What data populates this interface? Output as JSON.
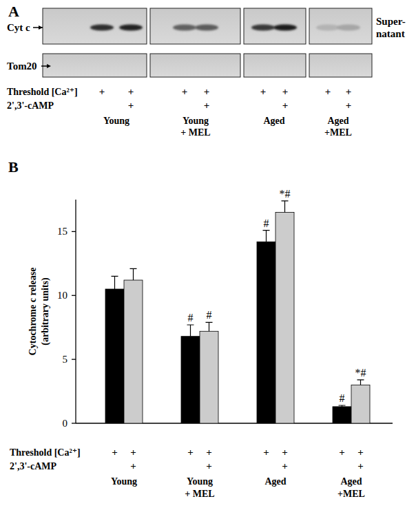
{
  "panel_labels": [
    "A",
    "B"
  ],
  "panel_a": {
    "row_labels": [
      "Cyt c",
      "Tom20"
    ],
    "fraction_label": [
      "Super-",
      "natant"
    ],
    "groups": [
      "Young",
      "Young + MEL",
      "Aged",
      "Aged +MEL"
    ],
    "conditions": [
      {
        "label": "Threshold [Ca²⁺]",
        "marks": [
          "+",
          "+"
        ]
      },
      {
        "label": "2',3'-cAMP",
        "marks": [
          null,
          "+"
        ]
      }
    ]
  },
  "chart_data": {
    "type": "bar",
    "ylabel": [
      "Cytochrome c release",
      "(arbitrary units)"
    ],
    "categories": [
      "Young",
      "Young + MEL",
      "Aged",
      "Aged +MEL"
    ],
    "series": [
      {
        "color": "#000000",
        "values": [
          10.5,
          6.8,
          14.2,
          1.3
        ],
        "errors": [
          1.0,
          0.9,
          0.9,
          0.1
        ],
        "significance": [
          null,
          "#",
          "#",
          "#"
        ]
      },
      {
        "color": "#cccccc",
        "values": [
          11.2,
          7.2,
          16.5,
          3.0
        ],
        "errors": [
          0.9,
          0.7,
          0.9,
          0.4
        ],
        "significance": [
          null,
          "#",
          "*#",
          "*#"
        ]
      }
    ],
    "conditions": [
      {
        "label": "Threshold [Ca²⁺]",
        "marks": [
          "+",
          "+"
        ]
      },
      {
        "label": "2',3'-cAMP",
        "marks": [
          null,
          "+"
        ]
      }
    ],
    "ylim": [
      0,
      17.5
    ],
    "yticks": [
      0,
      5,
      10,
      15
    ],
    "grid": false
  }
}
